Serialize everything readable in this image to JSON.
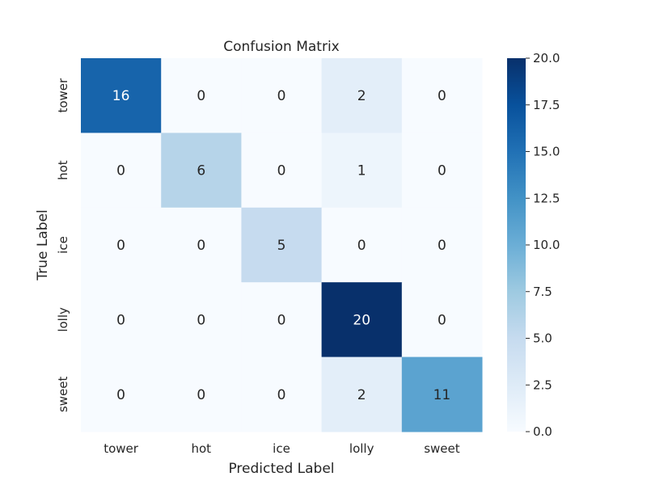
{
  "chart_data": {
    "type": "heatmap",
    "title": "Confusion Matrix",
    "xlabel": "Predicted Label",
    "ylabel": "True Label",
    "x_categories": [
      "tower",
      "hot",
      "ice",
      "lolly",
      "sweet"
    ],
    "y_categories": [
      "tower",
      "hot",
      "ice",
      "lolly",
      "sweet"
    ],
    "values": [
      [
        16,
        0,
        0,
        2,
        0
      ],
      [
        0,
        6,
        0,
        1,
        0
      ],
      [
        0,
        0,
        5,
        0,
        0
      ],
      [
        0,
        0,
        0,
        20,
        0
      ],
      [
        0,
        0,
        0,
        2,
        11
      ]
    ],
    "colorbar": {
      "min": 0.0,
      "max": 20.0,
      "ticks": [
        "0.0",
        "2.5",
        "5.0",
        "7.5",
        "10.0",
        "12.5",
        "15.0",
        "17.5",
        "20.0"
      ]
    },
    "colormap": "Blues",
    "colormap_stops": [
      "#f7fbff",
      "#deebf7",
      "#c6dbef",
      "#9ecae1",
      "#6baed6",
      "#4292c6",
      "#2171b5",
      "#08519c",
      "#08306b"
    ],
    "grid": false,
    "annotations": true
  }
}
